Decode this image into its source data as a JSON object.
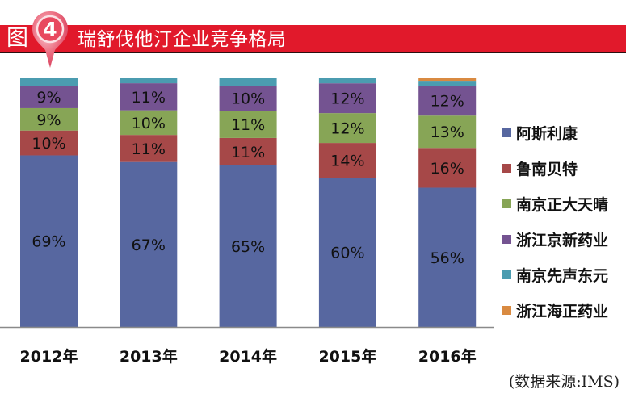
{
  "header": {
    "figure_label": "图",
    "figure_number": "4",
    "title": "瑞舒伐他汀企业竞争格局"
  },
  "colors": {
    "title_bar": "#e1192b",
    "阿斯利康": "#5767a0",
    "鲁南贝特": "#a64848",
    "南京正大天晴": "#87a556",
    "浙江京新药业": "#745391",
    "南京先声东元": "#4b9cb0",
    "浙江海正药业": "#d98a41"
  },
  "chart_data": {
    "type": "bar",
    "stacked": true,
    "title": "瑞舒伐他汀企业竞争格局",
    "xlabel": "",
    "ylabel": "",
    "ylim": [
      0,
      100
    ],
    "grid": false,
    "legend_position": "right",
    "categories": [
      "2012年",
      "2013年",
      "2014年",
      "2015年",
      "2016年"
    ],
    "series": [
      {
        "name": "阿斯利康",
        "values": [
          69,
          67,
          65,
          60,
          56
        ],
        "labels": [
          "69%",
          "67%",
          "65%",
          "60%",
          "56%"
        ]
      },
      {
        "name": "鲁南贝特",
        "values": [
          10,
          11,
          11,
          14,
          16
        ],
        "labels": [
          "10%",
          "11%",
          "11%",
          "14%",
          "16%"
        ]
      },
      {
        "name": "南京正大天晴",
        "values": [
          9,
          10,
          11,
          12,
          13
        ],
        "labels": [
          "9%",
          "10%",
          "11%",
          "12%",
          "13%"
        ]
      },
      {
        "name": "浙江京新药业",
        "values": [
          9,
          11,
          10,
          12,
          12
        ],
        "labels": [
          "9%",
          "11%",
          "10%",
          "12%",
          "12%"
        ]
      },
      {
        "name": "南京先声东元",
        "values": [
          3,
          2,
          3,
          2,
          2
        ],
        "labels": [
          "",
          "",
          "",
          "",
          ""
        ]
      },
      {
        "name": "浙江海正药业",
        "values": [
          0,
          0,
          0,
          0,
          1
        ],
        "labels": [
          "",
          "",
          "",
          "",
          ""
        ]
      }
    ]
  },
  "source_note": "(数据来源:IMS)"
}
